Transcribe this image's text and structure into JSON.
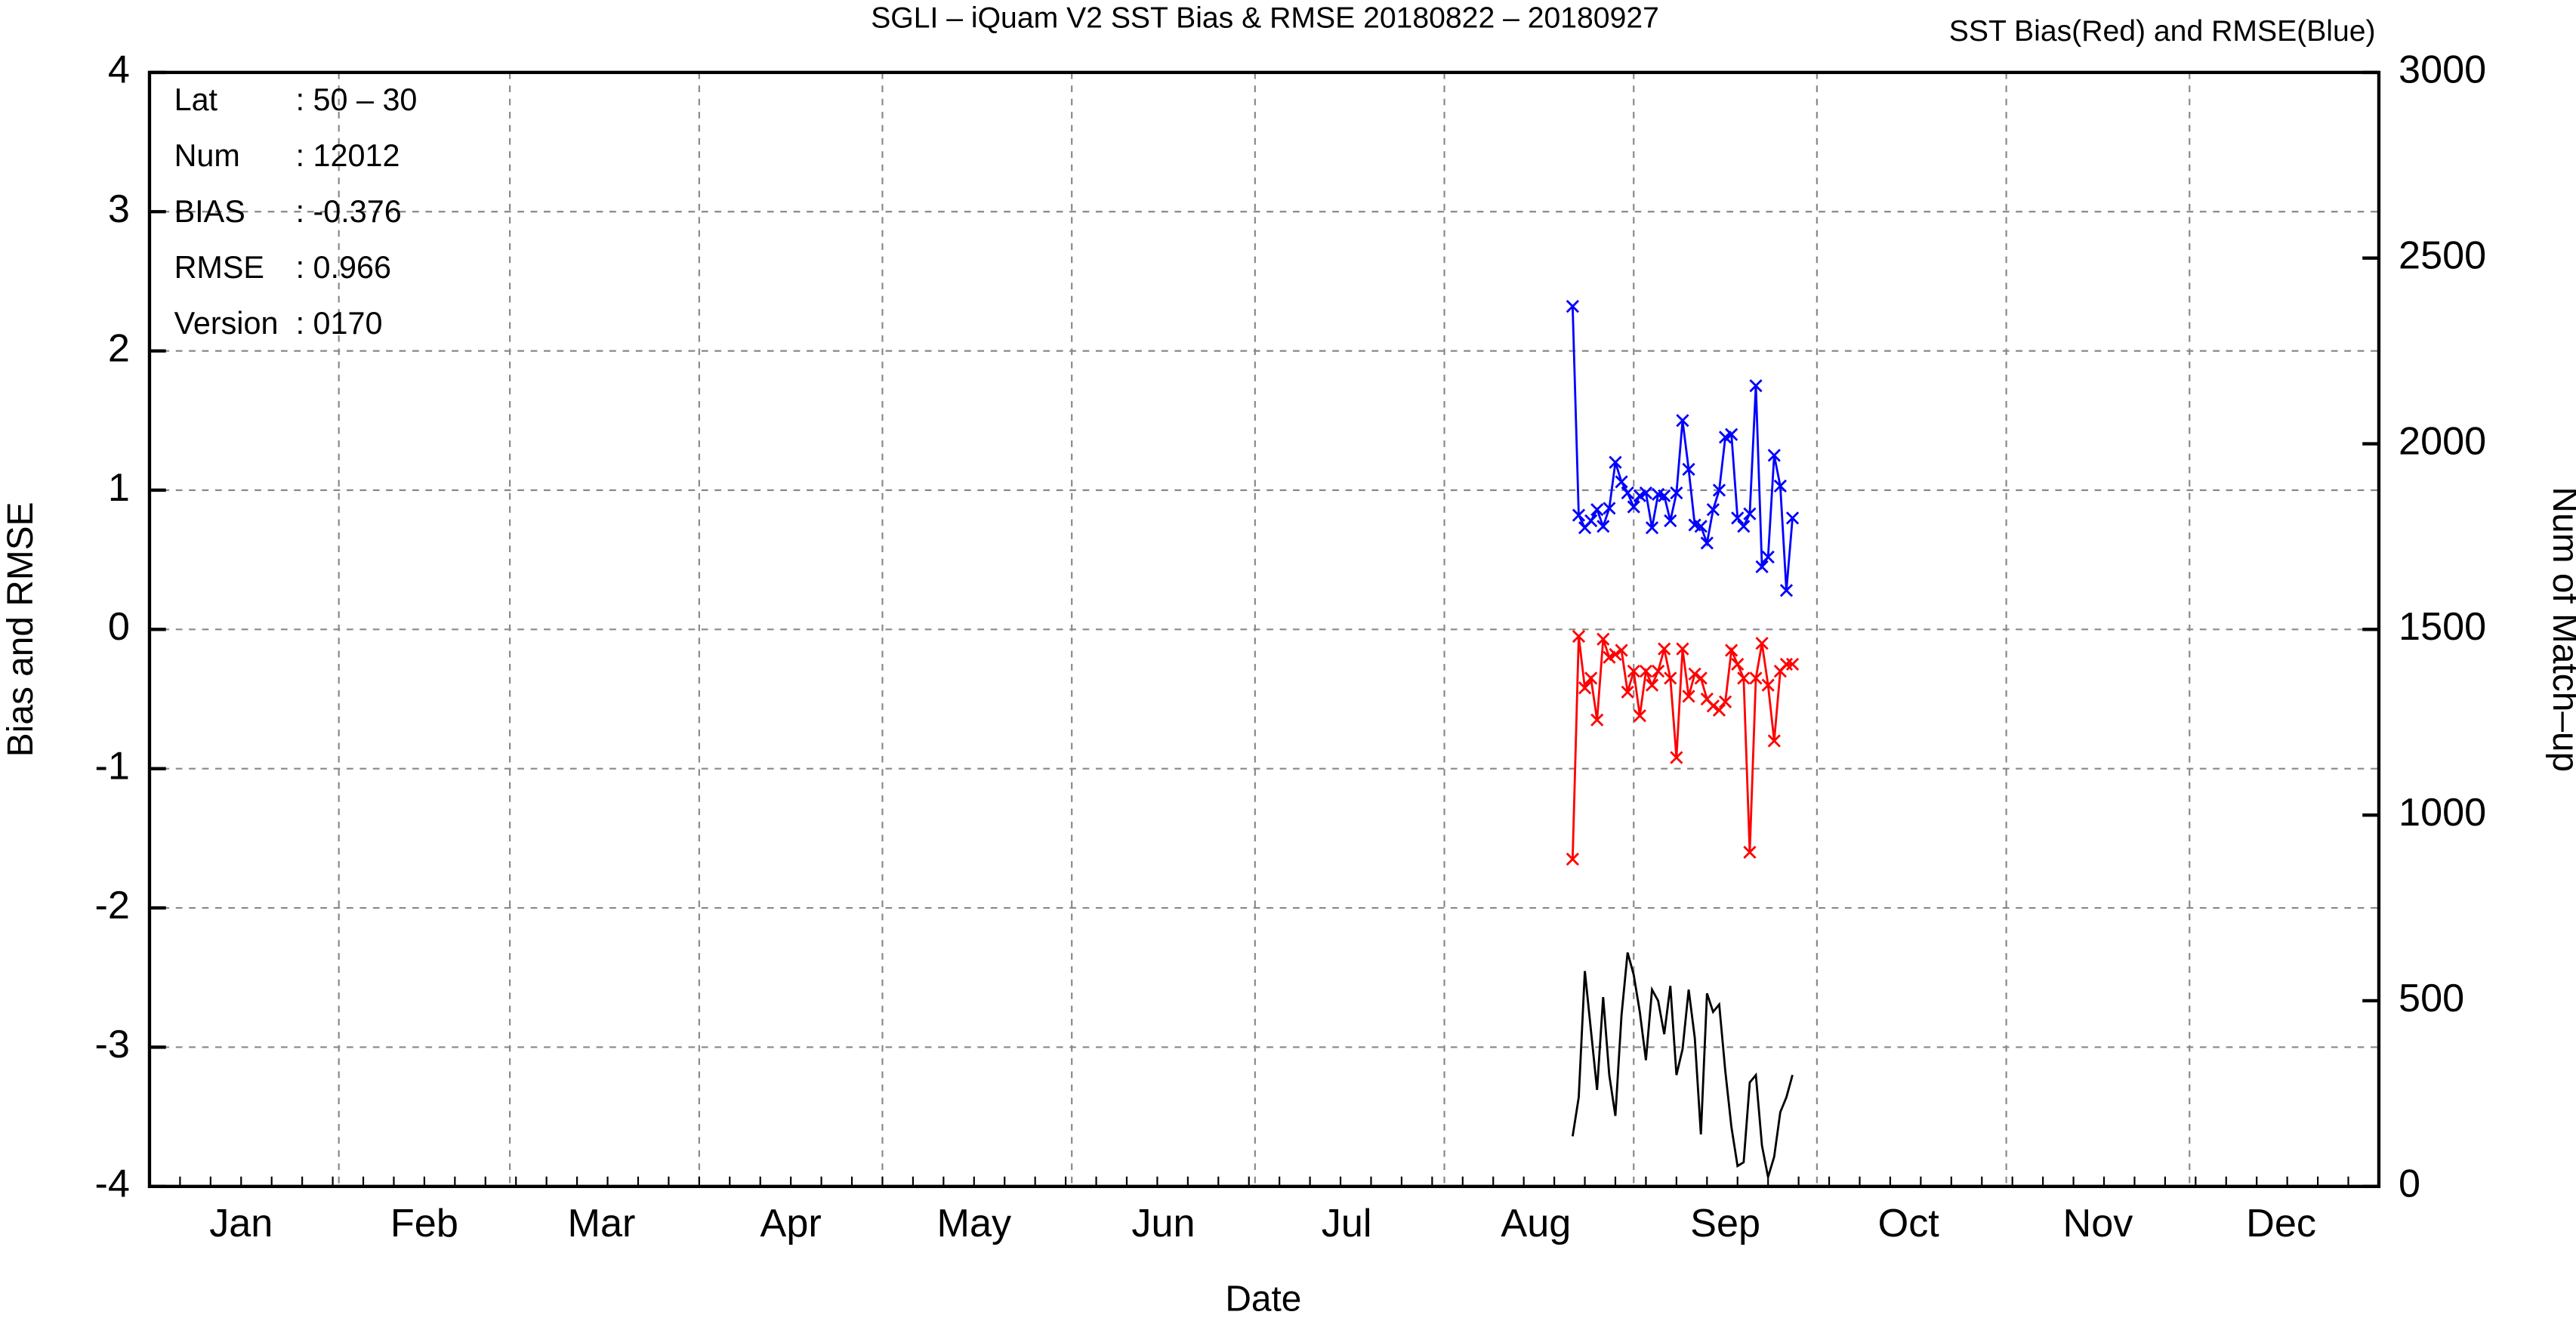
{
  "chart_data": {
    "type": "line",
    "title": "SGLI – iQuam V2 SST Bias & RMSE 20180822 – 20180927",
    "legend_text": "SST Bias(Red) and RMSE(Blue)",
    "xlabel": "Date",
    "ylabel": "Bias and RMSE",
    "y2label": "Num of Match–up",
    "annotations": [
      {
        "label": "Lat",
        "text": ": 50 – 30"
      },
      {
        "label": "Num",
        "text": ": 12012"
      },
      {
        "label": "BIAS",
        "text": ": -0.376"
      },
      {
        "label": "RMSE",
        "text": ": 0.966"
      },
      {
        "label": "Version",
        "text": ": 0170"
      }
    ],
    "xlim": [
      1,
      366
    ],
    "xticks": [
      {
        "value": 16,
        "label": "Jan"
      },
      {
        "value": 46,
        "label": "Feb"
      },
      {
        "value": 75,
        "label": "Mar"
      },
      {
        "value": 106,
        "label": "Apr"
      },
      {
        "value": 136,
        "label": "May"
      },
      {
        "value": 167,
        "label": "Jun"
      },
      {
        "value": 197,
        "label": "Jul"
      },
      {
        "value": 228,
        "label": "Aug"
      },
      {
        "value": 259,
        "label": "Sep"
      },
      {
        "value": 289,
        "label": "Oct"
      },
      {
        "value": 320,
        "label": "Nov"
      },
      {
        "value": 350,
        "label": "Dec"
      }
    ],
    "xgrid": [
      32,
      60,
      91,
      121,
      152,
      182,
      213,
      244,
      274,
      305,
      335
    ],
    "ylim": [
      -4,
      4
    ],
    "yticks": [
      -4,
      -3,
      -2,
      -1,
      0,
      1,
      2,
      3,
      4
    ],
    "y2lim": [
      0,
      3000
    ],
    "y2ticks": [
      0,
      500,
      1000,
      1500,
      2000,
      2500,
      3000
    ],
    "grid": true,
    "x": [
      234,
      235,
      236,
      237,
      238,
      239,
      240,
      241,
      242,
      243,
      244,
      245,
      246,
      247,
      248,
      249,
      250,
      251,
      252,
      253,
      254,
      255,
      256,
      257,
      258,
      259,
      260,
      261,
      262,
      263,
      264,
      265,
      266,
      267,
      268,
      269,
      270
    ],
    "series": [
      {
        "color": "#0000ff",
        "marker": "x",
        "values": [
          2.32,
          0.82,
          0.73,
          0.78,
          0.86,
          0.74,
          0.87,
          1.2,
          1.06,
          0.98,
          0.88,
          0.96,
          0.98,
          0.73,
          0.97,
          0.96,
          0.78,
          0.98,
          1.5,
          1.15,
          0.75,
          0.74,
          0.62,
          0.86,
          1.0,
          1.38,
          1.4,
          0.8,
          0.74,
          0.83,
          1.75,
          0.45,
          0.52,
          1.25,
          1.03,
          0.28,
          0.8
        ]
      },
      {
        "color": "#ff0000",
        "marker": "x",
        "values": [
          -1.65,
          -0.05,
          -0.42,
          -0.35,
          -0.65,
          -0.07,
          -0.2,
          -0.18,
          -0.15,
          -0.45,
          -0.3,
          -0.62,
          -0.3,
          -0.4,
          -0.3,
          -0.14,
          -0.35,
          -0.92,
          -0.14,
          -0.48,
          -0.32,
          -0.35,
          -0.5,
          -0.55,
          -0.58,
          -0.52,
          -0.15,
          -0.25,
          -0.35,
          -1.6,
          -0.35,
          -0.1,
          -0.4,
          -0.8,
          -0.3,
          -0.25,
          -0.25
        ]
      },
      {
        "color": "#000000",
        "axis": "y2",
        "values": [
          135,
          240,
          580,
          420,
          260,
          510,
          300,
          190,
          460,
          630,
          570,
          470,
          340,
          530,
          500,
          410,
          540,
          300,
          370,
          530,
          400,
          140,
          520,
          470,
          490,
          310,
          160,
          55,
          65,
          280,
          300,
          110,
          25,
          80,
          200,
          240,
          300
        ]
      }
    ]
  }
}
